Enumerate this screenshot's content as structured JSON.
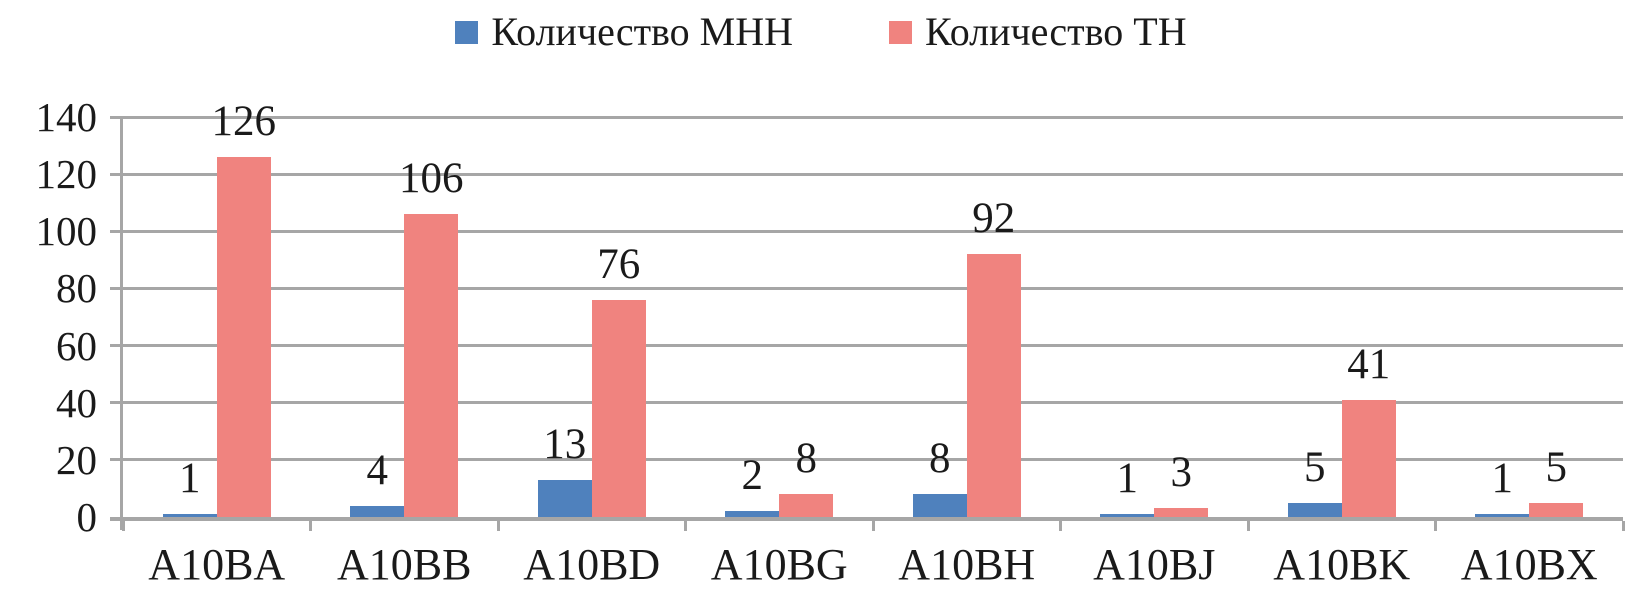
{
  "chart_data": {
    "type": "bar",
    "categories": [
      "A10BA",
      "A10BB",
      "A10BD",
      "A10BG",
      "A10BH",
      "A10BJ",
      "A10BK",
      "A10BX"
    ],
    "series": [
      {
        "name": "Количество МНН",
        "color": "#4F81BD",
        "values": [
          1,
          4,
          13,
          2,
          8,
          1,
          5,
          1
        ]
      },
      {
        "name": "Количество ТН",
        "color": "#F0837F",
        "values": [
          126,
          106,
          76,
          8,
          92,
          3,
          41,
          5
        ]
      }
    ],
    "title": "",
    "xlabel": "",
    "ylabel": "",
    "ylim": [
      0,
      140
    ],
    "yticks": [
      0,
      20,
      40,
      60,
      80,
      100,
      120,
      140
    ],
    "grid": true,
    "legend_position": "top-center",
    "colors": {
      "gridline": "#A6A6A6",
      "axis": "#A6A6A6",
      "text": "#1A1A1A",
      "background": "#FFFFFF"
    }
  }
}
